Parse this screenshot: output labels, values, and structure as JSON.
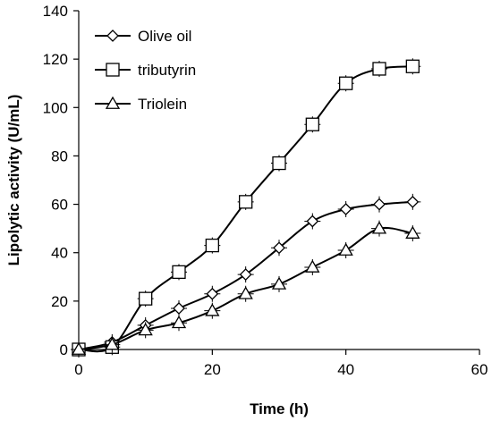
{
  "chart_data": {
    "type": "line",
    "title": "",
    "xlabel": "Time (h)",
    "ylabel": "Lipolytic activity (U/mL)",
    "xlim": [
      0,
      60
    ],
    "ylim": [
      0,
      140
    ],
    "xticks": [
      0,
      20,
      40,
      60
    ],
    "yticks": [
      0,
      20,
      40,
      60,
      80,
      100,
      120,
      140
    ],
    "grid": false,
    "legend_position": "top-left",
    "series": [
      {
        "name": "Olive oil",
        "marker": "diamond",
        "x": [
          0,
          5,
          10,
          15,
          20,
          25,
          30,
          35,
          40,
          45,
          50
        ],
        "y": [
          0,
          3,
          10,
          17,
          23,
          31,
          42,
          53,
          58,
          60,
          61
        ]
      },
      {
        "name": "tributyrin",
        "marker": "square",
        "x": [
          0,
          5,
          10,
          15,
          20,
          25,
          30,
          35,
          40,
          45,
          50
        ],
        "y": [
          0,
          1,
          21,
          32,
          43,
          61,
          77,
          93,
          110,
          116,
          117
        ]
      },
      {
        "name": "Triolein",
        "marker": "triangle",
        "x": [
          0,
          5,
          10,
          15,
          20,
          25,
          30,
          35,
          40,
          45,
          50
        ],
        "y": [
          0,
          2,
          8,
          11,
          16,
          23,
          27,
          34,
          41,
          50,
          48
        ]
      }
    ]
  }
}
